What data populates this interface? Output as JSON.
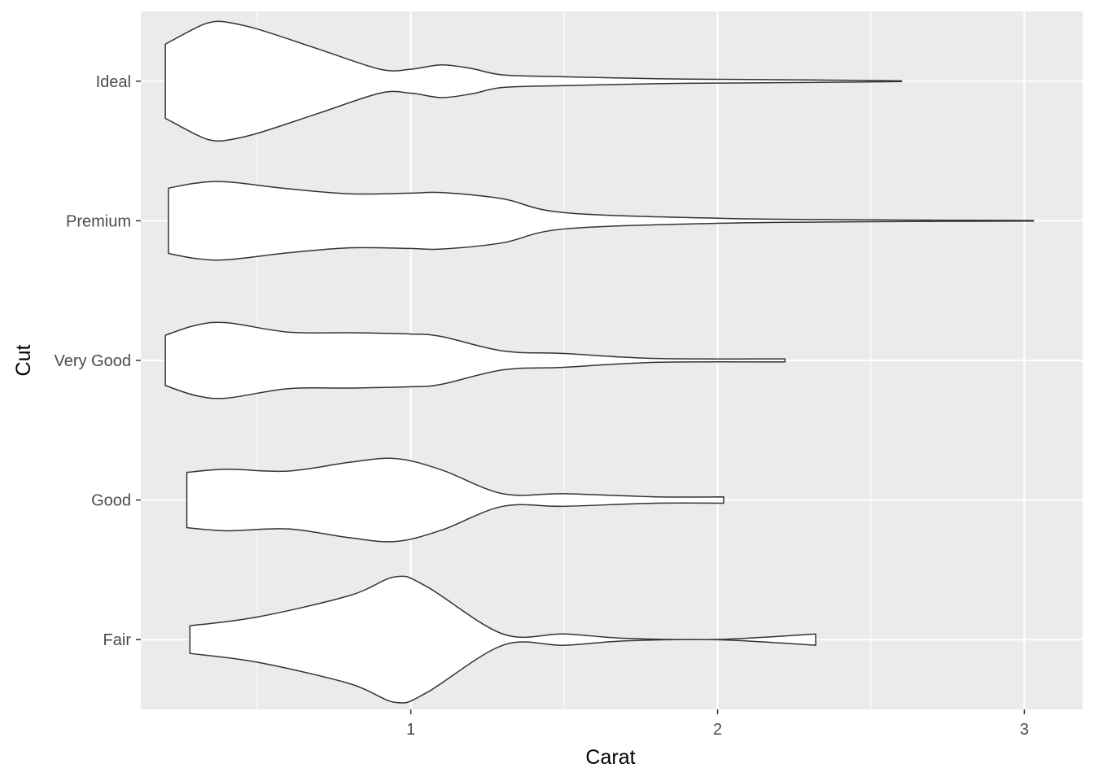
{
  "chart_data": {
    "type": "violin",
    "orientation": "horizontal",
    "xlabel": "Carat",
    "ylabel": "Cut",
    "xlim": [
      0.12,
      3.19
    ],
    "x_ticks": [
      1,
      2,
      3
    ],
    "x_minor_ticks": [
      0.5,
      1.5,
      2.5
    ],
    "grid": true,
    "colors": {
      "panel_background": "#ebebeb",
      "grid_major": "#ffffff",
      "grid_minor": "#ffffff",
      "violin_fill": "#ffffff",
      "violin_outline": "#333333",
      "tick_text": "#4d4d4d",
      "title_text": "#000000"
    },
    "categories": [
      "Fair",
      "Good",
      "Very Good",
      "Premium",
      "Ideal"
    ],
    "series": [
      {
        "category": "Ideal",
        "range": [
          0.2,
          2.6
        ],
        "profile": [
          [
            0.2,
            0.59
          ],
          [
            0.3,
            0.85
          ],
          [
            0.35,
            0.94
          ],
          [
            0.4,
            0.94
          ],
          [
            0.5,
            0.83
          ],
          [
            0.7,
            0.51
          ],
          [
            0.9,
            0.19
          ],
          [
            1.0,
            0.19
          ],
          [
            1.1,
            0.26
          ],
          [
            1.2,
            0.2
          ],
          [
            1.3,
            0.1
          ],
          [
            1.5,
            0.07
          ],
          [
            1.8,
            0.04
          ],
          [
            2.0,
            0.03
          ],
          [
            2.3,
            0.02
          ],
          [
            2.6,
            0.005
          ]
        ]
      },
      {
        "category": "Premium",
        "range": [
          0.21,
          3.03
        ],
        "profile": [
          [
            0.21,
            0.52
          ],
          [
            0.3,
            0.6
          ],
          [
            0.4,
            0.62
          ],
          [
            0.6,
            0.51
          ],
          [
            0.8,
            0.43
          ],
          [
            1.0,
            0.44
          ],
          [
            1.1,
            0.45
          ],
          [
            1.3,
            0.35
          ],
          [
            1.5,
            0.13
          ],
          [
            2.0,
            0.04
          ],
          [
            2.5,
            0.015
          ],
          [
            3.03,
            0.005
          ]
        ]
      },
      {
        "category": "Very Good",
        "range": [
          0.2,
          2.22
        ],
        "profile": [
          [
            0.2,
            0.4
          ],
          [
            0.3,
            0.56
          ],
          [
            0.4,
            0.6
          ],
          [
            0.6,
            0.45
          ],
          [
            0.8,
            0.44
          ],
          [
            1.0,
            0.42
          ],
          [
            1.1,
            0.38
          ],
          [
            1.3,
            0.15
          ],
          [
            1.5,
            0.11
          ],
          [
            1.8,
            0.03
          ],
          [
            2.22,
            0.025
          ]
        ]
      },
      {
        "category": "Good",
        "range": [
          0.27,
          2.02
        ],
        "profile": [
          [
            0.27,
            0.44
          ],
          [
            0.4,
            0.49
          ],
          [
            0.6,
            0.46
          ],
          [
            0.8,
            0.6
          ],
          [
            0.95,
            0.66
          ],
          [
            1.1,
            0.48
          ],
          [
            1.3,
            0.1
          ],
          [
            1.5,
            0.1
          ],
          [
            1.8,
            0.05
          ],
          [
            2.02,
            0.05
          ]
        ]
      },
      {
        "category": "Fair",
        "range": [
          0.28,
          2.32
        ],
        "profile": [
          [
            0.28,
            0.22
          ],
          [
            0.5,
            0.36
          ],
          [
            0.8,
            0.7
          ],
          [
            0.95,
            1.0
          ],
          [
            1.05,
            0.85
          ],
          [
            1.3,
            0.09
          ],
          [
            1.5,
            0.09
          ],
          [
            1.7,
            0.02
          ],
          [
            2.0,
            0.003
          ],
          [
            2.32,
            0.09
          ]
        ]
      }
    ]
  }
}
